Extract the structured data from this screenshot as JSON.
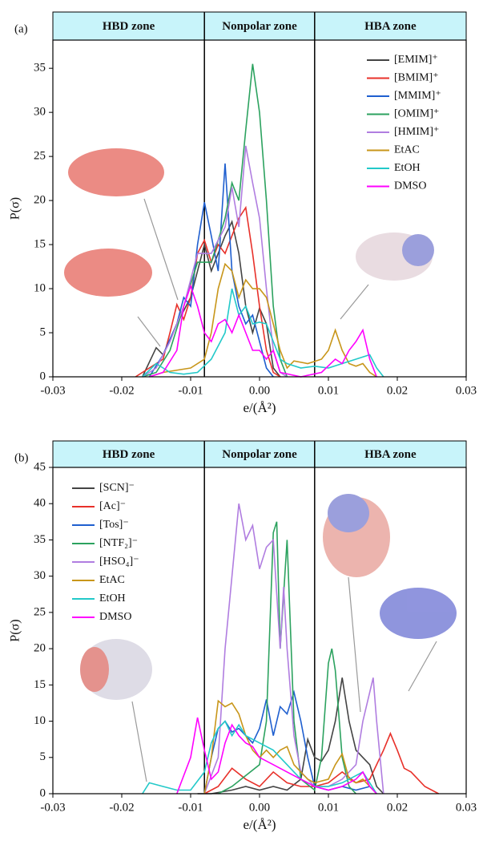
{
  "chart_data": [
    {
      "type": "line",
      "panel": "(a)",
      "zones": [
        "HBD zone",
        "Nonpolar zone",
        "HBA zone"
      ],
      "vlines": [
        -0.008,
        0.008
      ],
      "x_label": "e/(Å²)",
      "y_label": "P(σ)",
      "xlim": [
        -0.03,
        0.03
      ],
      "xticks": [
        -0.03,
        -0.02,
        -0.01,
        {
          "value": 0,
          "label": "0.00"
        },
        0.01,
        0.02,
        0.03
      ],
      "ylim": [
        0,
        38.2
      ],
      "yticks": [
        0,
        5,
        10,
        15,
        20,
        25,
        30,
        35
      ],
      "series": [
        {
          "name": "[EMIM]⁺",
          "color": "#444444",
          "x": [
            -0.017,
            -0.015,
            -0.014,
            -0.012,
            -0.01,
            -0.009,
            -0.008,
            -0.007,
            -0.006,
            -0.005,
            -0.004,
            -0.003,
            -0.002,
            -0.001,
            0,
            0.001,
            0.002,
            0.003
          ],
          "values": [
            0,
            3.3,
            2.5,
            6,
            9,
            12,
            15,
            12,
            14,
            16,
            17.6,
            14,
            8,
            5,
            7.8,
            6,
            1,
            0
          ]
        },
        {
          "name": "[BMIM]⁺",
          "color": "#e8312a",
          "x": [
            -0.018,
            -0.016,
            -0.014,
            -0.013,
            -0.012,
            -0.011,
            -0.01,
            -0.009,
            -0.008,
            -0.007,
            -0.006,
            -0.005,
            -0.004,
            -0.003,
            -0.002,
            -0.001,
            0,
            0.001,
            0.002,
            0.003
          ],
          "values": [
            0,
            1,
            2,
            5,
            8.2,
            6.5,
            9,
            14,
            15.5,
            13,
            15,
            14,
            16,
            18,
            19.2,
            14,
            8,
            3,
            0.5,
            0
          ]
        },
        {
          "name": "[MMIM]⁺",
          "color": "#1f5fcf",
          "x": [
            -0.016,
            -0.014,
            -0.012,
            -0.011,
            -0.01,
            -0.009,
            -0.008,
            -0.007,
            -0.006,
            -0.005,
            -0.004,
            -0.003,
            -0.002,
            -0.001,
            0,
            0.001,
            0.002
          ],
          "values": [
            0,
            2.5,
            6,
            9,
            8,
            15,
            19.8,
            16,
            12,
            24.2,
            12,
            8,
            6,
            7,
            4,
            1,
            0
          ]
        },
        {
          "name": "[OMIM]⁺",
          "color": "#2ca25f",
          "x": [
            -0.017,
            -0.015,
            -0.013,
            -0.011,
            -0.009,
            -0.007,
            -0.005,
            -0.004,
            -0.003,
            -0.002,
            -0.001,
            0,
            0.001,
            0.002,
            0.003,
            0.004
          ],
          "values": [
            0,
            0.5,
            3,
            8,
            13,
            13,
            18,
            22,
            20,
            28,
            35.5,
            30,
            20,
            8,
            2,
            0
          ]
        },
        {
          "name": "[HMIM]⁺",
          "color": "#b07de0",
          "x": [
            -0.017,
            -0.015,
            -0.013,
            -0.011,
            -0.009,
            -0.007,
            -0.005,
            -0.004,
            -0.003,
            -0.002,
            -0.001,
            0,
            0.001,
            0.002,
            0.003,
            0.004
          ],
          "values": [
            0,
            1,
            4,
            8,
            14,
            14,
            17,
            21.5,
            17,
            26.2,
            22,
            18,
            10,
            3,
            0.5,
            0
          ]
        },
        {
          "name": "EtAC",
          "color": "#c8961a",
          "x": [
            -0.016,
            -0.014,
            -0.01,
            -0.008,
            -0.007,
            -0.006,
            -0.005,
            -0.004,
            -0.003,
            -0.002,
            -0.001,
            0,
            0.001,
            0.002,
            0.003,
            0.004,
            0.005,
            0.007,
            0.009,
            0.01,
            0.011,
            0.012,
            0.013,
            0.014,
            0.015,
            0.016,
            0.017
          ],
          "values": [
            0,
            0.5,
            1,
            2,
            5,
            10,
            12.8,
            12,
            9,
            11,
            10,
            10,
            9,
            6,
            3,
            1,
            1.8,
            1.5,
            2,
            3,
            5.3,
            3,
            1.5,
            1.2,
            1.5,
            0.5,
            0
          ]
        },
        {
          "name": "EtOH",
          "color": "#22c9c9",
          "x": [
            -0.017,
            -0.015,
            -0.013,
            -0.011,
            -0.009,
            -0.007,
            -0.005,
            -0.004,
            -0.003,
            -0.002,
            -0.001,
            0,
            0.001,
            0.002,
            0.003,
            0.004,
            0.006,
            0.008,
            0.01,
            0.012,
            0.014,
            0.016,
            0.017,
            0.018
          ],
          "values": [
            0,
            1.5,
            0.5,
            0.3,
            0.5,
            2,
            5,
            10,
            7,
            8,
            6,
            6.2,
            6,
            4,
            2,
            1.5,
            1,
            1.2,
            1,
            1.5,
            2,
            2.5,
            1,
            0
          ]
        },
        {
          "name": "DMSO",
          "color": "#ff00ff",
          "x": [
            -0.016,
            -0.014,
            -0.012,
            -0.011,
            -0.01,
            -0.009,
            -0.008,
            -0.007,
            -0.006,
            -0.005,
            -0.004,
            -0.003,
            -0.002,
            -0.001,
            0,
            0.001,
            0.002,
            0.003,
            0.006,
            0.009,
            0.011,
            0.012,
            0.013,
            0.014,
            0.015,
            0.016,
            0.017
          ],
          "values": [
            0,
            0.5,
            3,
            8,
            10.3,
            8,
            5,
            4,
            6,
            6.5,
            5,
            7,
            5,
            3,
            3,
            2,
            3,
            0.5,
            0,
            0.5,
            2,
            1.5,
            3,
            4,
            5.3,
            2,
            0
          ]
        }
      ]
    },
    {
      "type": "line",
      "panel": "(b)",
      "zones": [
        "HBD zone",
        "Nonpolar zone",
        "HBA zone"
      ],
      "vlines": [
        -0.008,
        0.008
      ],
      "x_label": "e/(Å²)",
      "y_label": "P(σ)",
      "xlim": [
        -0.03,
        0.03
      ],
      "xticks": [
        -0.03,
        -0.02,
        -0.01,
        {
          "value": 0,
          "label": "0.00"
        },
        0.01,
        0.02,
        0.03
      ],
      "ylim": [
        0,
        45
      ],
      "yticks": [
        0,
        5,
        10,
        15,
        20,
        25,
        30,
        35,
        40,
        45
      ],
      "series": [
        {
          "name": "[SCN]⁻",
          "color": "#444444",
          "x": [
            -0.009,
            -0.007,
            -0.004,
            -0.002,
            0,
            0.002,
            0.004,
            0.006,
            0.007,
            0.008,
            0.009,
            0.01,
            0.011,
            0.012,
            0.013,
            0.014,
            0.015,
            0.016,
            0.017,
            0.018
          ],
          "values": [
            0,
            0,
            0.5,
            1,
            0.5,
            1,
            0.5,
            2,
            7.5,
            5,
            4.5,
            6,
            10,
            16,
            10,
            6,
            5,
            4,
            1,
            0
          ]
        },
        {
          "name": "[Ac]⁻",
          "color": "#e8312a",
          "x": [
            -0.008,
            -0.006,
            -0.004,
            -0.002,
            0,
            0.002,
            0.004,
            0.006,
            0.008,
            0.01,
            0.012,
            0.014,
            0.016,
            0.018,
            0.019,
            0.02,
            0.021,
            0.022,
            0.024,
            0.026
          ],
          "values": [
            0,
            1,
            3.5,
            2,
            1,
            3,
            1.5,
            1,
            1,
            1.5,
            3,
            1.5,
            2,
            6,
            8.3,
            6,
            3.5,
            3,
            1,
            0
          ]
        },
        {
          "name": "[Tos]⁻",
          "color": "#1f5fcf",
          "x": [
            -0.008,
            -0.007,
            -0.006,
            -0.005,
            -0.004,
            -0.003,
            -0.002,
            -0.001,
            0,
            0.001,
            0.002,
            0.003,
            0.004,
            0.005,
            0.006,
            0.007,
            0.008,
            0.01,
            0.012,
            0.014,
            0.016,
            0.017
          ],
          "values": [
            0,
            5,
            9,
            10,
            8.5,
            9,
            8,
            7,
            9,
            13,
            8,
            12,
            11,
            14,
            10,
            5,
            1,
            0.5,
            1,
            0.5,
            1,
            0
          ]
        },
        {
          "name": "[NTF₂]⁻",
          "color": "#2ca25f",
          "x": [
            -0.006,
            -0.004,
            -0.002,
            0,
            0.001,
            0.002,
            0.0025,
            0.003,
            0.004,
            0.005,
            0.006,
            0.008,
            0.009,
            0.01,
            0.0105,
            0.011,
            0.012,
            0.013,
            0.014
          ],
          "values": [
            0,
            1,
            2.5,
            4,
            10,
            36,
            37.5,
            20,
            35,
            10,
            2,
            0.5,
            5,
            18,
            20,
            17,
            5,
            1,
            0
          ]
        },
        {
          "name": "[HSO₄]⁻",
          "color": "#b07de0",
          "x": [
            -0.008,
            -0.006,
            -0.005,
            -0.004,
            -0.003,
            -0.002,
            -0.001,
            0,
            0.001,
            0.002,
            0.003,
            0.0035,
            0.004,
            0.005,
            0.006,
            0.008,
            0.01,
            0.012,
            0.014,
            0.015,
            0.016,
            0.0165,
            0.017,
            0.018
          ],
          "values": [
            0,
            5,
            20,
            30,
            40,
            35,
            37,
            31,
            34,
            35,
            20,
            28.5,
            20,
            8,
            3,
            1,
            1,
            2,
            4,
            10,
            14,
            16,
            10,
            0
          ]
        },
        {
          "name": "EtAC",
          "color": "#c8961a",
          "x": [
            -0.008,
            -0.007,
            -0.006,
            -0.005,
            -0.004,
            -0.003,
            -0.002,
            -0.001,
            0,
            0.001,
            0.002,
            0.003,
            0.004,
            0.005,
            0.006,
            0.007,
            0.008,
            0.01,
            0.011,
            0.012,
            0.013,
            0.014,
            0.015,
            0.016,
            0.017
          ],
          "values": [
            0,
            5,
            12.8,
            12,
            12.5,
            11,
            8,
            6,
            5,
            6,
            5,
            6,
            6.5,
            4,
            3,
            2,
            1.5,
            2,
            4,
            5.5,
            2,
            1.5,
            2,
            1,
            0
          ]
        },
        {
          "name": "EtOH",
          "color": "#22c9c9",
          "x": [
            -0.017,
            -0.016,
            -0.014,
            -0.012,
            -0.01,
            -0.008,
            -0.007,
            -0.006,
            -0.005,
            -0.004,
            -0.003,
            -0.002,
            -0.001,
            0,
            0.001,
            0.002,
            0.003,
            0.004,
            0.005,
            0.006,
            0.008,
            0.01,
            0.012,
            0.014,
            0.015,
            0.016,
            0.017
          ],
          "values": [
            0,
            1.5,
            1,
            0.5,
            0.5,
            3,
            7,
            9,
            10,
            8,
            9.5,
            8,
            7.5,
            7,
            6.5,
            6,
            5,
            4,
            3,
            2,
            1,
            1,
            1.5,
            2.5,
            3,
            1.5,
            0
          ]
        },
        {
          "name": "DMSO",
          "color": "#ff00ff",
          "x": [
            -0.012,
            -0.01,
            -0.009,
            -0.008,
            -0.007,
            -0.006,
            -0.005,
            -0.004,
            -0.003,
            -0.002,
            -0.001,
            0,
            0.002,
            0.004,
            0.006,
            0.008,
            0.01,
            0.012,
            0.014,
            0.015,
            0.016,
            0.017
          ],
          "values": [
            0,
            5,
            10.5,
            6,
            2,
            3,
            7,
            9.5,
            8,
            7,
            6.5,
            5,
            4,
            3,
            2,
            1,
            0.5,
            1,
            2,
            3,
            1,
            0
          ]
        }
      ]
    }
  ]
}
